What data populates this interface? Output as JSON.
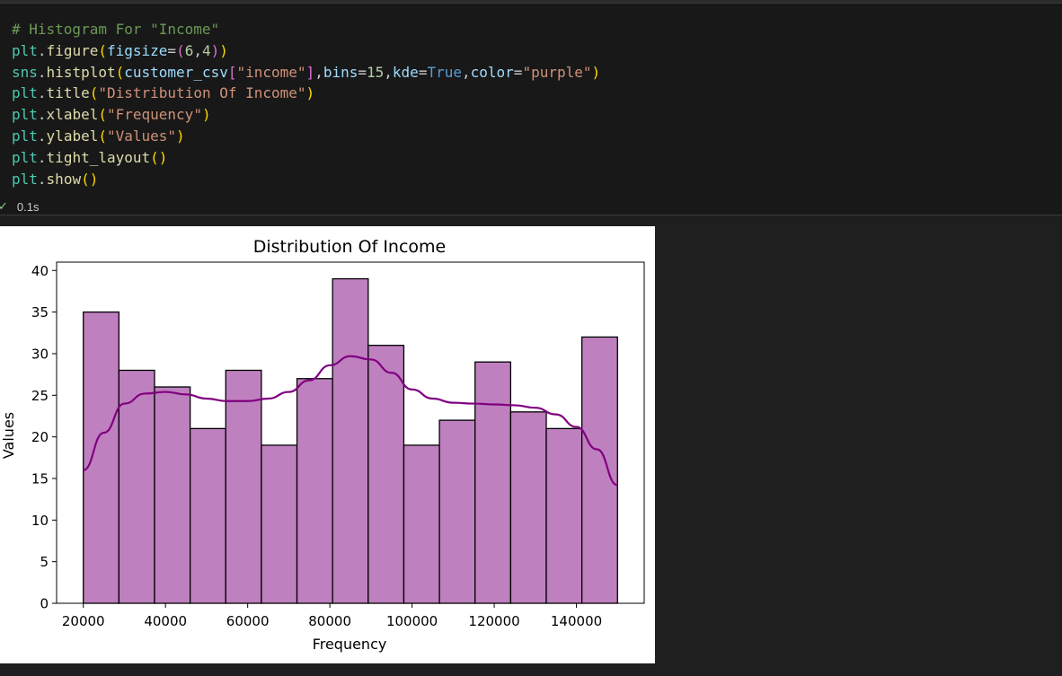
{
  "cell": {
    "code_lines": [
      [
        {
          "t": "# Histogram For \"Income\"",
          "c": "comment"
        }
      ],
      [
        {
          "t": "plt",
          "c": "ident"
        },
        {
          "t": ".",
          "c": ""
        },
        {
          "t": "figure",
          "c": "fn"
        },
        {
          "t": "(",
          "c": "p1"
        },
        {
          "t": "figsize",
          "c": "var"
        },
        {
          "t": "=",
          "c": ""
        },
        {
          "t": "(",
          "c": "p2"
        },
        {
          "t": "6",
          "c": "num"
        },
        {
          "t": ",",
          "c": ""
        },
        {
          "t": "4",
          "c": "num"
        },
        {
          "t": ")",
          "c": "p2"
        },
        {
          "t": ")",
          "c": "p1"
        }
      ],
      [
        {
          "t": "sns",
          "c": "ident"
        },
        {
          "t": ".",
          "c": ""
        },
        {
          "t": "histplot",
          "c": "fn"
        },
        {
          "t": "(",
          "c": "p1"
        },
        {
          "t": "customer_csv",
          "c": "var"
        },
        {
          "t": "[",
          "c": "p2"
        },
        {
          "t": "\"income\"",
          "c": "str"
        },
        {
          "t": "]",
          "c": "p2"
        },
        {
          "t": ",",
          "c": ""
        },
        {
          "t": "bins",
          "c": "var"
        },
        {
          "t": "=",
          "c": ""
        },
        {
          "t": "15",
          "c": "num"
        },
        {
          "t": ",",
          "c": ""
        },
        {
          "t": "kde",
          "c": "var"
        },
        {
          "t": "=",
          "c": ""
        },
        {
          "t": "True",
          "c": "kw"
        },
        {
          "t": ",",
          "c": ""
        },
        {
          "t": "color",
          "c": "var"
        },
        {
          "t": "=",
          "c": ""
        },
        {
          "t": "\"purple\"",
          "c": "str"
        },
        {
          "t": ")",
          "c": "p1"
        }
      ],
      [
        {
          "t": "plt",
          "c": "ident"
        },
        {
          "t": ".",
          "c": ""
        },
        {
          "t": "title",
          "c": "fn"
        },
        {
          "t": "(",
          "c": "p1"
        },
        {
          "t": "\"Distribution Of Income\"",
          "c": "str"
        },
        {
          "t": ")",
          "c": "p1"
        }
      ],
      [
        {
          "t": "plt",
          "c": "ident"
        },
        {
          "t": ".",
          "c": ""
        },
        {
          "t": "xlabel",
          "c": "fn"
        },
        {
          "t": "(",
          "c": "p1"
        },
        {
          "t": "\"Frequency\"",
          "c": "str"
        },
        {
          "t": ")",
          "c": "p1"
        }
      ],
      [
        {
          "t": "plt",
          "c": "ident"
        },
        {
          "t": ".",
          "c": ""
        },
        {
          "t": "ylabel",
          "c": "fn"
        },
        {
          "t": "(",
          "c": "p1"
        },
        {
          "t": "\"Values\"",
          "c": "str"
        },
        {
          "t": ")",
          "c": "p1"
        }
      ],
      [
        {
          "t": "plt",
          "c": "ident"
        },
        {
          "t": ".",
          "c": ""
        },
        {
          "t": "tight_layout",
          "c": "fn"
        },
        {
          "t": "()",
          "c": "p1"
        }
      ],
      [
        {
          "t": "plt",
          "c": "ident"
        },
        {
          "t": ".",
          "c": ""
        },
        {
          "t": "show",
          "c": "fn"
        },
        {
          "t": "()",
          "c": "p1"
        }
      ]
    ],
    "status_icon": "check-icon",
    "execution_time": "0.1s"
  },
  "chart_data": {
    "type": "bar",
    "title": "Distribution Of Income",
    "xlabel": "Frequency",
    "ylabel": "Values",
    "bins": {
      "start": 20000,
      "end": 150000,
      "counts": [
        35,
        28,
        26,
        21,
        28,
        19,
        27,
        39,
        31,
        19,
        22,
        29,
        23,
        21,
        32
      ]
    },
    "kde": {
      "x": [
        20000,
        25000,
        30000,
        35000,
        40000,
        45000,
        50000,
        55000,
        60000,
        65000,
        70000,
        75000,
        80000,
        85000,
        90000,
        95000,
        100000,
        105000,
        110000,
        115000,
        120000,
        125000,
        130000,
        135000,
        140000,
        145000,
        150000
      ],
      "y": [
        16,
        20.5,
        24,
        25.2,
        25.4,
        25.1,
        24.6,
        24.3,
        24.3,
        24.6,
        25.4,
        26.8,
        28.6,
        29.7,
        29.3,
        27.7,
        25.7,
        24.6,
        24.1,
        24,
        23.9,
        23.8,
        23.5,
        22.7,
        21.2,
        18.5,
        14.2
      ]
    },
    "xticks": [
      20000,
      40000,
      60000,
      80000,
      100000,
      120000,
      140000
    ],
    "yticks": [
      0,
      5,
      10,
      15,
      20,
      25,
      30,
      35,
      40
    ],
    "xlim": [
      13500,
      156500
    ],
    "ylim": [
      0,
      41
    ],
    "bar_color": "#bf80bf",
    "bar_edge": "#000000",
    "kde_color": "#800080",
    "grid": false
  }
}
